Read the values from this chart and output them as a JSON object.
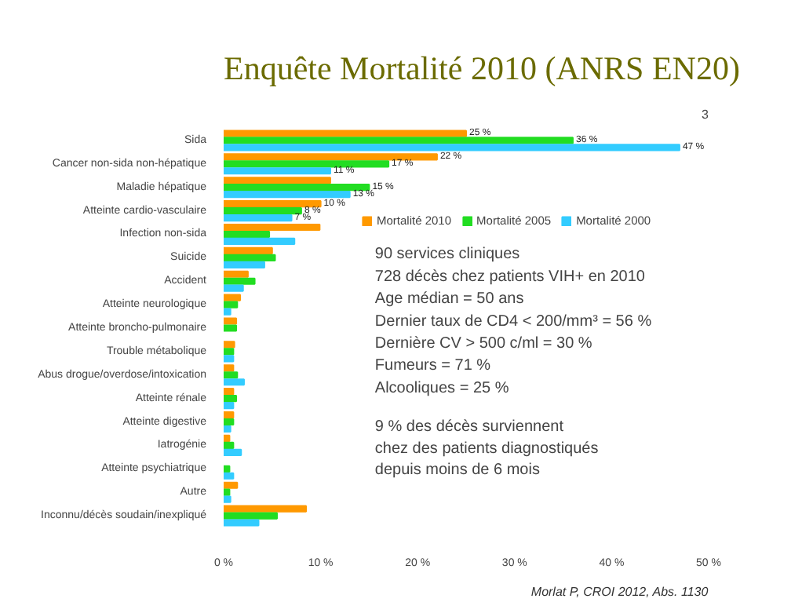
{
  "chart_data": {
    "type": "bar",
    "orientation": "horizontal",
    "title": "Enquête Mortalité 2010 (ANRS EN20)",
    "categories": [
      "Sida",
      "Cancer non-sida non-hépatique",
      "Maladie hépatique",
      "Atteinte cardio-vasculaire",
      "Infection non-sida",
      "Suicide",
      "Accident",
      "Atteinte neurologique",
      "Atteinte broncho-pulmonaire",
      "Trouble métabolique",
      "Abus drogue/overdose/intoxication",
      "Atteinte rénale",
      "Atteinte digestive",
      "Iatrogénie",
      "Atteinte psychiatrique",
      "Autre",
      "Inconnu/décès soudain/inexpliqué"
    ],
    "series": [
      {
        "name": "Mortalité 2010",
        "color": "#ff9900",
        "values": [
          25,
          22,
          11,
          10,
          9.9,
          5.0,
          2.5,
          1.7,
          1.3,
          1.1,
          1.0,
          1.0,
          1.0,
          0.6,
          null,
          1.4,
          8.5
        ],
        "value_labels": [
          "25 %",
          "22 %",
          null,
          "10 %",
          null,
          null,
          null,
          null,
          null,
          null,
          null,
          null,
          null,
          null,
          null,
          null,
          null
        ]
      },
      {
        "name": "Mortalité 2005",
        "color": "#22dd22",
        "values": [
          36,
          17,
          15,
          8,
          4.7,
          5.3,
          3.2,
          1.4,
          1.3,
          1.0,
          1.4,
          1.3,
          1.0,
          1.0,
          0.6,
          0.6,
          5.5
        ],
        "value_labels": [
          "36 %",
          "17 %",
          "15 %",
          "8 %",
          null,
          null,
          null,
          null,
          null,
          null,
          null,
          null,
          null,
          null,
          null,
          null,
          null
        ]
      },
      {
        "name": "Mortalité 2000",
        "color": "#33ccff",
        "values": [
          47,
          11,
          13,
          7,
          7.3,
          4.2,
          2.0,
          0.7,
          null,
          1.0,
          2.1,
          1.0,
          0.7,
          1.8,
          1.0,
          0.7,
          3.6
        ],
        "value_labels": [
          "47 %",
          "11 %",
          "13 %",
          "7 %",
          null,
          null,
          null,
          null,
          null,
          null,
          null,
          null,
          null,
          null,
          null,
          null,
          null
        ]
      }
    ],
    "xlim": [
      0,
      50
    ],
    "xticks": [
      {
        "value": 0,
        "label": "0 %"
      },
      {
        "value": 10,
        "label": "10 %"
      },
      {
        "value": 20,
        "label": "20 %"
      },
      {
        "value": 30,
        "label": "30 %"
      },
      {
        "value": 40,
        "label": "40 %"
      },
      {
        "value": 50,
        "label": "50 %"
      }
    ],
    "legend": "right",
    "annotations": [
      "3",
      "90 services cliniques",
      "728 décès chez patients VIH+ en 2010",
      "Age médian = 50 ans",
      "Dernier taux de CD4 < 200/mm³ = 56 %",
      "Dernière CV > 500 c/ml = 30 %",
      "Fumeurs = 71 %",
      "Alcooliques = 25 %",
      "9 % des décès surviennent\nchez des patients diagnostiqués\ndepuis moins de 6 mois",
      "Morlat P, CROI 2012, Abs. 1130"
    ]
  }
}
